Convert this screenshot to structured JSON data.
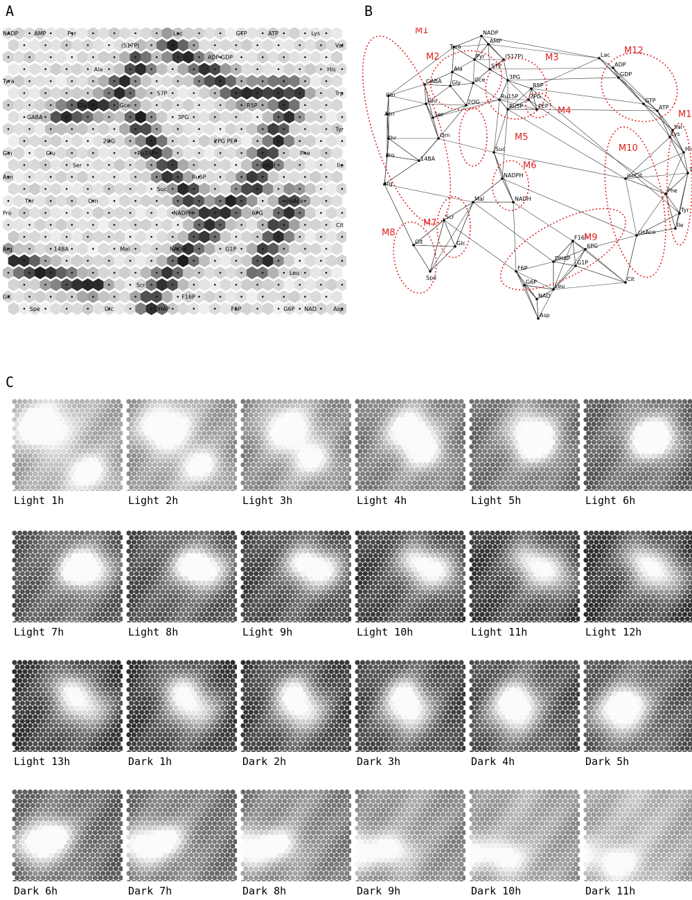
{
  "panels": {
    "a": "A",
    "b": "B",
    "c": "C"
  },
  "som_labels": [
    {
      "t": "NADP",
      "c": 0,
      "r": 0
    },
    {
      "t": "AMP",
      "c": 3,
      "r": 0
    },
    {
      "t": "Pyr",
      "c": 6,
      "r": 0
    },
    {
      "t": "Lac",
      "c": 16,
      "r": 0
    },
    {
      "t": "GTP",
      "c": 22,
      "r": 0
    },
    {
      "t": "ATP",
      "c": 25,
      "r": 0
    },
    {
      "t": "Lys",
      "c": 29,
      "r": 0
    },
    {
      "t": "(S17P)",
      "c": 11,
      "r": 1
    },
    {
      "t": "Val",
      "c": 31,
      "r": 1
    },
    {
      "t": "ADP GDP",
      "c": 20,
      "r": 2
    },
    {
      "t": "Ala",
      "c": 8,
      "r": 3
    },
    {
      "t": "His",
      "c": 30,
      "r": 3
    },
    {
      "t": "Tyra",
      "c": 0,
      "r": 4
    },
    {
      "t": "S7P",
      "c": 14,
      "r": 5
    },
    {
      "t": "Trp",
      "c": 31,
      "r": 5
    },
    {
      "t": "Gly",
      "c": 7,
      "r": 6
    },
    {
      "t": "Gce",
      "c": 11,
      "r": 6
    },
    {
      "t": "R5P",
      "c": 23,
      "r": 6
    },
    {
      "t": "GABA",
      "c": 2,
      "r": 7
    },
    {
      "t": "3PG",
      "c": 16,
      "r": 7
    },
    {
      "t": "Tyr",
      "c": 31,
      "r": 8
    },
    {
      "t": "2OG",
      "c": 9,
      "r": 9
    },
    {
      "t": "2PG PEP",
      "c": 20,
      "r": 9
    },
    {
      "t": "Gln",
      "c": 0,
      "r": 10
    },
    {
      "t": "Glu",
      "c": 4,
      "r": 10
    },
    {
      "t": "Ru15P",
      "c": 13,
      "r": 10
    },
    {
      "t": "Phe",
      "c": 28,
      "r": 10
    },
    {
      "t": "Ser",
      "c": 6,
      "r": 11
    },
    {
      "t": "isoCit",
      "c": 24,
      "r": 11
    },
    {
      "t": "Ile",
      "c": 31,
      "r": 11
    },
    {
      "t": "Asn",
      "c": 0,
      "r": 12
    },
    {
      "t": "Ru5P",
      "c": 18,
      "r": 12
    },
    {
      "t": "Suc",
      "c": 14,
      "r": 13
    },
    {
      "t": "Thr",
      "c": 2,
      "r": 14
    },
    {
      "t": "Orn",
      "c": 8,
      "r": 14
    },
    {
      "t": "cisAco",
      "c": 27,
      "r": 14
    },
    {
      "t": "Pro",
      "c": 0,
      "r": 15
    },
    {
      "t": "NADPH",
      "c": 16,
      "r": 15
    },
    {
      "t": "6PG",
      "c": 23,
      "r": 15
    },
    {
      "t": "Cit",
      "c": 31,
      "r": 16
    },
    {
      "t": "Arg",
      "c": 0,
      "r": 18
    },
    {
      "t": "14BA",
      "c": 5,
      "r": 18
    },
    {
      "t": "Mal",
      "c": 11,
      "r": 18
    },
    {
      "t": "NADH",
      "c": 16,
      "r": 18
    },
    {
      "t": "G1P",
      "c": 21,
      "r": 18
    },
    {
      "t": "Leu",
      "c": 27,
      "r": 20
    },
    {
      "t": "Scr",
      "c": 12,
      "r": 21
    },
    {
      "t": "Glt",
      "c": 0,
      "r": 22
    },
    {
      "t": "F16P",
      "c": 17,
      "r": 22
    },
    {
      "t": "Spe",
      "c": 2,
      "r": 23
    },
    {
      "t": "Glc",
      "c": 9,
      "r": 23
    },
    {
      "t": "DHAP",
      "c": 14,
      "r": 23
    },
    {
      "t": "F6P",
      "c": 21,
      "r": 23
    },
    {
      "t": "G6P",
      "c": 26,
      "r": 23
    },
    {
      "t": "NAD",
      "c": 28,
      "r": 23
    },
    {
      "t": "Asp",
      "c": 31,
      "r": 23
    }
  ],
  "network": {
    "modules": [
      "M1",
      "M2",
      "M3",
      "M4",
      "M5",
      "M6",
      "M7",
      "M8",
      "M9",
      "M10",
      "M12",
      "M1"
    ],
    "nodes": [
      "NADP",
      "Tyra",
      "AMP",
      "Pyr",
      "(S17P)",
      "Ala",
      "S7P",
      "Gly",
      "Gce",
      "3PG",
      "R5P",
      "2OG",
      "GABA",
      "Ru15P",
      "2PG",
      "PEP",
      "Gln",
      "Glu",
      "Ser",
      "Ru5P",
      "Asn",
      "Orn",
      "Thr",
      "Suc",
      "Pro",
      "14BA",
      "NADPH",
      "Arg",
      "Mal",
      "NADH",
      "Scr",
      "F16P",
      "6PG",
      "Glt",
      "Glc",
      "DHAP",
      "G1P",
      "Spe",
      "F6P",
      "G6P",
      "Leu",
      "NAD",
      "Asp",
      "Lac",
      "ADP",
      "GDP",
      "GTP",
      "ATP",
      "Val",
      "Lys",
      "His",
      "Trp",
      "isoCit",
      "Phe",
      "Tyr",
      "Ile",
      "cisAco",
      "Cit"
    ]
  },
  "tiles": [
    "Light 1h",
    "Light 2h",
    "Light 3h",
    "Light 4h",
    "Light 5h",
    "Light 6h",
    "Light 7h",
    "Light 8h",
    "Light 9h",
    "Light 10h",
    "Light 11h",
    "Light 12h",
    "Light 13h",
    "Dark 1h",
    "Dark 2h",
    "Dark 3h",
    "Dark 4h",
    "Dark 5h",
    "Dark 6h",
    "Dark 7h",
    "Dark 8h",
    "Dark 9h",
    "Dark 10h",
    "Dark 11h"
  ],
  "colors": {
    "module": "#e02020",
    "line": "#333333"
  }
}
